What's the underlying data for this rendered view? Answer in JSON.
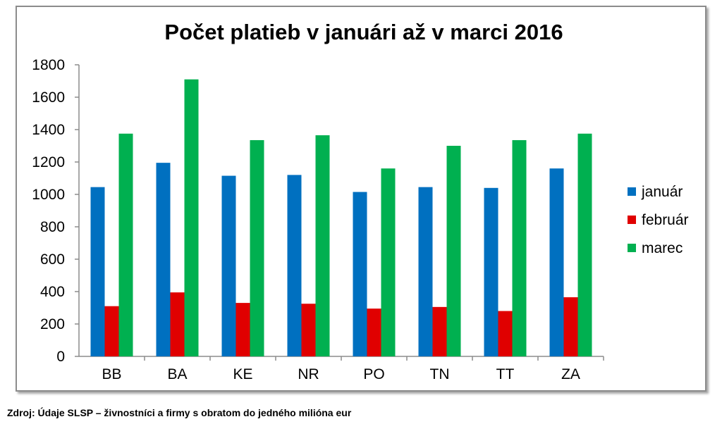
{
  "source_note": "Zdroj: Údaje SLSP – živnostníci a firmy s obratom do jedného milióna eur",
  "chart_data": {
    "type": "bar",
    "title": "Počet platieb v januári až v marci 2016",
    "xlabel": "",
    "ylabel": "",
    "ylim": [
      0,
      1800
    ],
    "yticks": [
      0,
      200,
      400,
      600,
      800,
      1000,
      1200,
      1400,
      1600,
      1800
    ],
    "grid": false,
    "legend_position": "right",
    "categories": [
      "BB",
      "BA",
      "KE",
      "NR",
      "PO",
      "TN",
      "TT",
      "ZA"
    ],
    "series": [
      {
        "name": "január",
        "color": "#0070c0",
        "values": [
          1045,
          1195,
          1115,
          1120,
          1015,
          1045,
          1040,
          1160
        ]
      },
      {
        "name": "február",
        "color": "#e00000",
        "values": [
          310,
          395,
          330,
          325,
          295,
          305,
          280,
          365
        ]
      },
      {
        "name": "marec",
        "color": "#00b050",
        "values": [
          1375,
          1710,
          1335,
          1365,
          1160,
          1300,
          1335,
          1375
        ]
      }
    ]
  }
}
